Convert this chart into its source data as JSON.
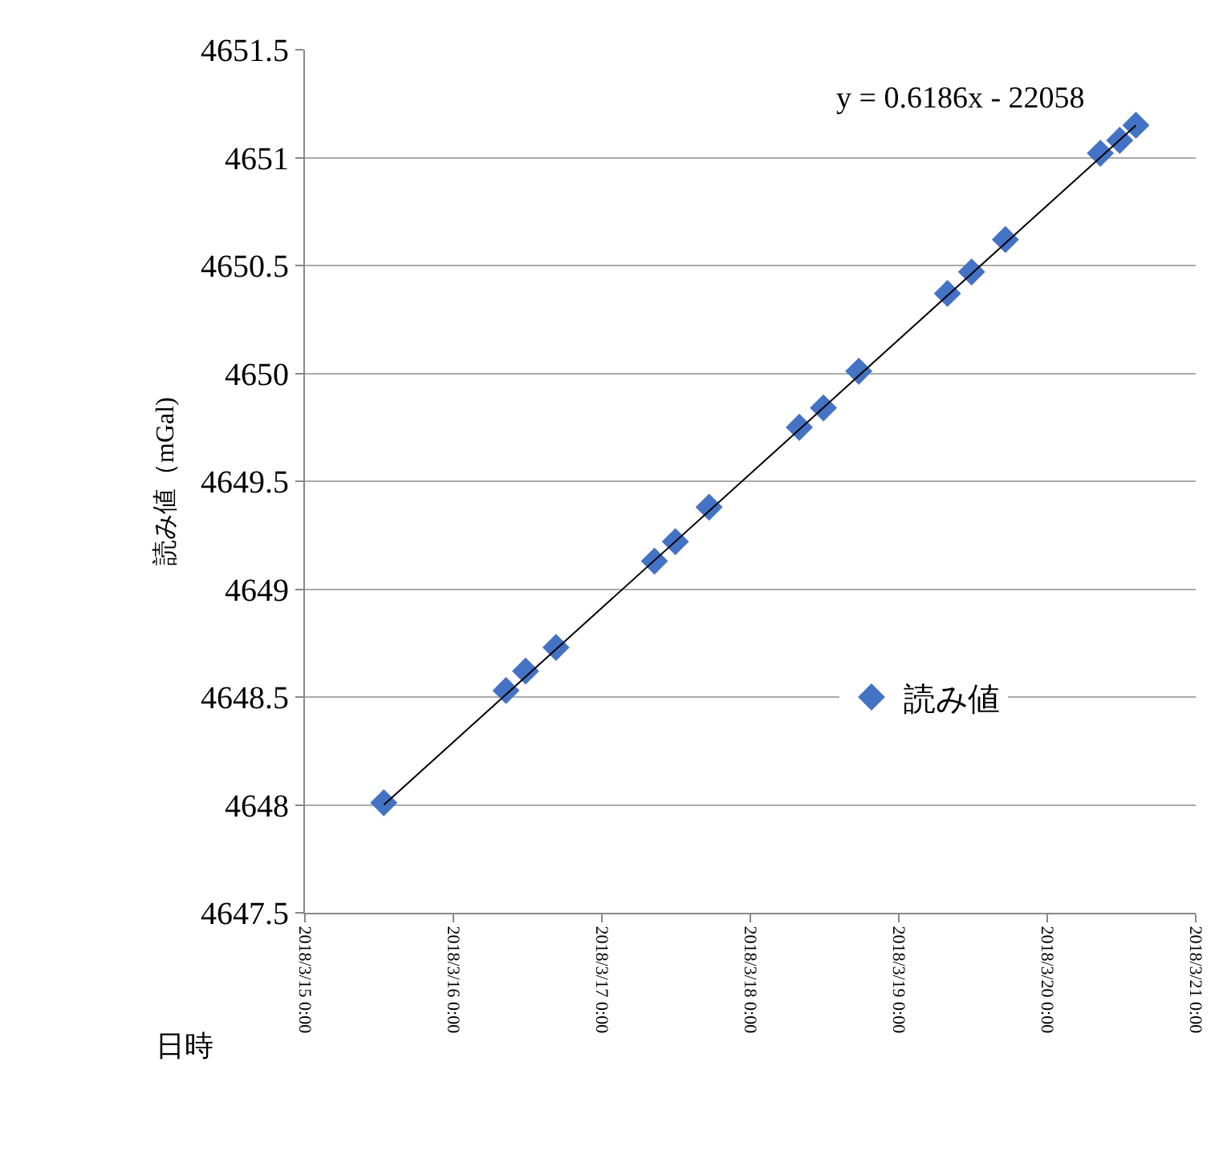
{
  "chart_data": {
    "type": "scatter",
    "xlabel": "日時",
    "ylabel": "読み値（mGal)",
    "annotations": [
      "y = 0.6186x - 22058"
    ],
    "xlim": [
      "2018-03-15",
      "2018-03-21"
    ],
    "xticks": [
      {
        "value": "2018-03-15",
        "label": "2018/3/15 0:00"
      },
      {
        "value": "2018-03-16",
        "label": "2018/3/16 0:00"
      },
      {
        "value": "2018-03-17",
        "label": "2018/3/17 0:00"
      },
      {
        "value": "2018-03-18",
        "label": "2018/3/18 0:00"
      },
      {
        "value": "2018-03-19",
        "label": "2018/3/19 0:00"
      },
      {
        "value": "2018-03-20",
        "label": "2018/3/20 0:00"
      },
      {
        "value": "2018-03-21",
        "label": "2018/3/21 0:00"
      }
    ],
    "ylim": [
      4647.5,
      4651.5
    ],
    "yticks": [
      4647.5,
      4648,
      4648.5,
      4649,
      4649.5,
      4650,
      4650.5,
      4651,
      4651.5
    ],
    "grid": "y",
    "legend": "bottom right",
    "series": [
      {
        "name": "読み値",
        "color": "#4472c4",
        "marker": "diamond",
        "x": [
          "2018-03-15T12:45",
          "2018-03-16T08:30",
          "2018-03-16T11:40",
          "2018-03-16T16:35",
          "2018-03-17T08:30",
          "2018-03-17T11:53",
          "2018-03-17T17:20",
          "2018-03-18T07:55",
          "2018-03-18T11:49",
          "2018-03-18T17:32",
          "2018-03-19T07:52",
          "2018-03-19T11:46",
          "2018-03-19T17:14",
          "2018-03-20T08:35",
          "2018-03-20T11:43",
          "2018-03-20T14:20"
        ],
        "values": [
          4648.01,
          4648.53,
          4648.62,
          4648.73,
          4649.13,
          4649.22,
          4649.38,
          4649.75,
          4649.84,
          4650.01,
          4650.37,
          4650.47,
          4650.62,
          4651.02,
          4651.08,
          4651.15
        ]
      },
      {
        "type": "line",
        "color": "#000000",
        "line_style": "solid",
        "x": [
          "2018-03-15T12:45",
          "2018-03-20T14:20"
        ],
        "values": [
          4648.0,
          4651.15
        ]
      }
    ]
  }
}
